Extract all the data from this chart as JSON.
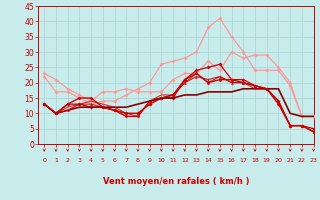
{
  "xlabel": "Vent moyen/en rafales ( km/h )",
  "xlim": [
    -0.5,
    23
  ],
  "ylim": [
    0,
    45
  ],
  "yticks": [
    0,
    5,
    10,
    15,
    20,
    25,
    30,
    35,
    40,
    45
  ],
  "xticks": [
    0,
    1,
    2,
    3,
    4,
    5,
    6,
    7,
    8,
    9,
    10,
    11,
    12,
    13,
    14,
    15,
    16,
    17,
    18,
    19,
    20,
    21,
    22,
    23
  ],
  "bg_color": "#c8ecec",
  "grid_color": "#a8d4d4",
  "series": [
    {
      "x": [
        0,
        1,
        2,
        3,
        4,
        5,
        6,
        7,
        8,
        9,
        10,
        11,
        12,
        13,
        14,
        15,
        16,
        17,
        18,
        19,
        20,
        21,
        22,
        23
      ],
      "y": [
        23,
        21,
        18,
        16,
        14,
        17,
        17,
        18,
        17,
        17,
        17,
        21,
        23,
        23,
        27,
        24,
        30,
        28,
        29,
        29,
        25,
        20,
        9,
        9
      ],
      "color": "#ff9999",
      "lw": 0.9,
      "marker": "D",
      "ms": 2.0,
      "alpha": 1.0
    },
    {
      "x": [
        0,
        1,
        2,
        3,
        4,
        5,
        6,
        7,
        8,
        9,
        10,
        11,
        12,
        13,
        14,
        15,
        16,
        17,
        18,
        19,
        20,
        21,
        22,
        23
      ],
      "y": [
        22,
        17,
        17,
        15,
        13,
        14,
        14,
        16,
        18,
        20,
        26,
        27,
        28,
        30,
        38,
        41,
        35,
        30,
        24,
        24,
        24,
        19,
        9,
        9
      ],
      "color": "#ff9999",
      "lw": 0.9,
      "marker": "D",
      "ms": 2.0,
      "alpha": 1.0
    },
    {
      "x": [
        0,
        1,
        2,
        3,
        4,
        5,
        6,
        7,
        8,
        9,
        10,
        11,
        12,
        13,
        14,
        15,
        16,
        17,
        18,
        19,
        20,
        21,
        22,
        23
      ],
      "y": [
        13,
        10,
        13,
        13,
        12,
        12,
        11,
        10,
        10,
        13,
        15,
        15,
        21,
        24,
        25,
        26,
        21,
        21,
        19,
        18,
        14,
        6,
        6,
        5
      ],
      "color": "#cc0000",
      "lw": 0.9,
      "marker": "D",
      "ms": 2.0,
      "alpha": 1.0
    },
    {
      "x": [
        0,
        1,
        2,
        3,
        4,
        5,
        6,
        7,
        8,
        9,
        10,
        11,
        12,
        13,
        14,
        15,
        16,
        17,
        18,
        19,
        20,
        21,
        22,
        23
      ],
      "y": [
        13,
        10,
        13,
        15,
        15,
        12,
        11,
        9,
        9,
        14,
        15,
        16,
        21,
        23,
        20,
        21,
        21,
        20,
        19,
        18,
        13,
        6,
        6,
        4
      ],
      "color": "#cc0000",
      "lw": 1.0,
      "marker": "o",
      "ms": 2.0,
      "alpha": 1.0
    },
    {
      "x": [
        0,
        1,
        2,
        3,
        4,
        5,
        6,
        7,
        8,
        9,
        10,
        11,
        12,
        13,
        14,
        15,
        16,
        17,
        18,
        19,
        20,
        21,
        22,
        23
      ],
      "y": [
        13,
        10,
        11,
        12,
        12,
        12,
        12,
        12,
        13,
        14,
        15,
        15,
        16,
        16,
        17,
        17,
        17,
        18,
        18,
        18,
        18,
        10,
        9,
        9
      ],
      "color": "#880000",
      "lw": 1.2,
      "marker": null,
      "ms": 0,
      "alpha": 1.0
    },
    {
      "x": [
        0,
        1,
        2,
        3,
        4,
        5,
        6,
        7,
        8,
        9,
        10,
        11,
        12,
        13,
        14,
        15,
        16,
        17,
        18,
        19,
        20,
        21,
        22,
        23
      ],
      "y": [
        13,
        10,
        11,
        13,
        13,
        12,
        11,
        10,
        10,
        13,
        15,
        16,
        20,
        22,
        21,
        22,
        20,
        20,
        19,
        18,
        14,
        6,
        6,
        4
      ],
      "color": "#cc0000",
      "lw": 0.8,
      "marker": "^",
      "ms": 2.0,
      "alpha": 0.9
    },
    {
      "x": [
        0,
        1,
        2,
        3,
        4,
        5,
        6,
        7,
        8,
        9,
        10,
        11,
        12,
        13,
        14,
        15,
        16,
        17,
        18,
        19,
        20,
        21,
        22,
        23
      ],
      "y": [
        13,
        10,
        12,
        13,
        14,
        13,
        12,
        10,
        9,
        14,
        16,
        16,
        20,
        23,
        20,
        22,
        20,
        20,
        18,
        18,
        14,
        6,
        6,
        4
      ],
      "color": "#cc0000",
      "lw": 0.8,
      "marker": null,
      "ms": 0,
      "alpha": 0.8
    }
  ],
  "arrow_color": "#cc0000",
  "tick_color": "#cc0000"
}
